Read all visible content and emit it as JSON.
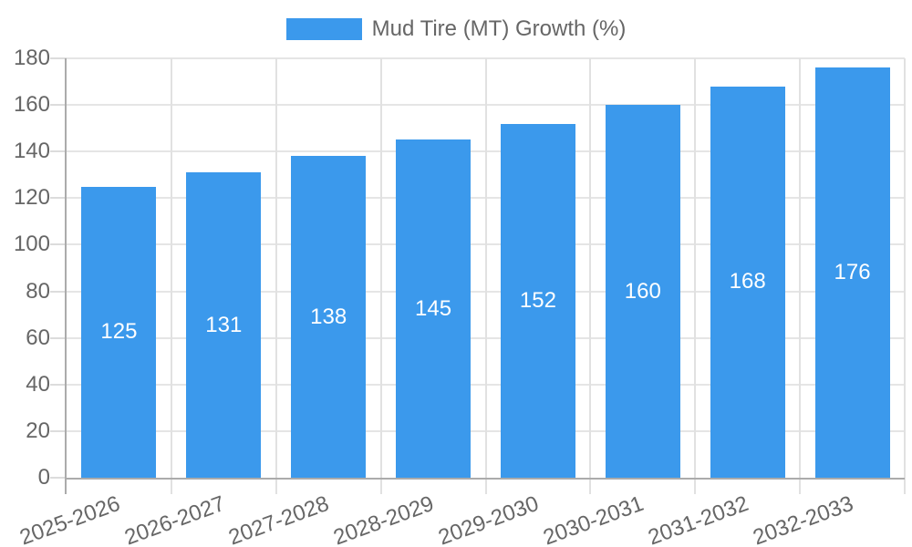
{
  "legend": {
    "label": "Mud Tire (MT) Growth (%)"
  },
  "chart_data": {
    "type": "bar",
    "title": "Mud Tire (MT) Growth (%)",
    "series_name": "Mud Tire (MT) Growth (%)",
    "categories": [
      "2025-2026",
      "2026-2027",
      "2027-2028",
      "2028-2029",
      "2029-2030",
      "2030-2031",
      "2031-2032",
      "2032-2033"
    ],
    "values": [
      125,
      131,
      138,
      145,
      152,
      160,
      168,
      176
    ],
    "bar_value_labels": [
      "125",
      "131",
      "138",
      "145",
      "152",
      "160",
      "168",
      "176"
    ],
    "xlabel": "",
    "ylabel": "",
    "ylim": [
      0,
      180
    ],
    "y_ticks": [
      0,
      20,
      40,
      60,
      80,
      100,
      120,
      140,
      160,
      180
    ],
    "grid": true,
    "legend_position": "top"
  },
  "colors": {
    "bar": "#3B99EC",
    "bar_label": "#FFFFFF",
    "axis_line": "#ABABAB",
    "grid_line": "#E5E5E5",
    "tick_text": "#666666",
    "legend_text": "#666666",
    "background": "#FFFFFF"
  }
}
